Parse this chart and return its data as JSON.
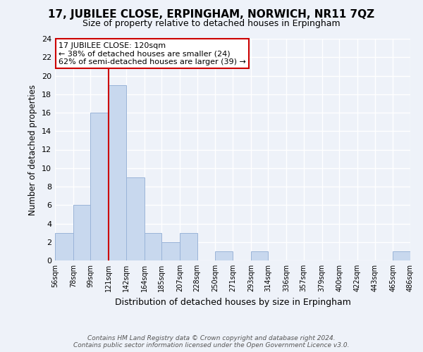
{
  "title": "17, JUBILEE CLOSE, ERPINGHAM, NORWICH, NR11 7QZ",
  "subtitle": "Size of property relative to detached houses in Erpingham",
  "xlabel": "Distribution of detached houses by size in Erpingham",
  "ylabel": "Number of detached properties",
  "bin_edges": [
    56,
    78,
    99,
    121,
    142,
    164,
    185,
    207,
    228,
    250,
    271,
    293,
    314,
    336,
    357,
    379,
    400,
    422,
    443,
    465,
    486
  ],
  "bar_heights": [
    3,
    6,
    16,
    19,
    9,
    3,
    2,
    3,
    0,
    1,
    0,
    1,
    0,
    0,
    0,
    0,
    0,
    0,
    0,
    1
  ],
  "bar_color": "#c8d8ee",
  "bar_edge_color": "#9ab4d8",
  "vline_x": 121,
  "vline_color": "#cc0000",
  "annotation_title": "17 JUBILEE CLOSE: 120sqm",
  "annotation_line1": "← 38% of detached houses are smaller (24)",
  "annotation_line2": "62% of semi-detached houses are larger (39) →",
  "annotation_box_color": "#ffffff",
  "annotation_border_color": "#cc0000",
  "tick_labels": [
    "56sqm",
    "78sqm",
    "99sqm",
    "121sqm",
    "142sqm",
    "164sqm",
    "185sqm",
    "207sqm",
    "228sqm",
    "250sqm",
    "271sqm",
    "293sqm",
    "314sqm",
    "336sqm",
    "357sqm",
    "379sqm",
    "400sqm",
    "422sqm",
    "443sqm",
    "465sqm",
    "486sqm"
  ],
  "ylim": [
    0,
    24
  ],
  "yticks": [
    0,
    2,
    4,
    6,
    8,
    10,
    12,
    14,
    16,
    18,
    20,
    22,
    24
  ],
  "footer_line1": "Contains HM Land Registry data © Crown copyright and database right 2024.",
  "footer_line2": "Contains public sector information licensed under the Open Government Licence v3.0.",
  "bg_color": "#eef2f9",
  "grid_color": "#ffffff"
}
